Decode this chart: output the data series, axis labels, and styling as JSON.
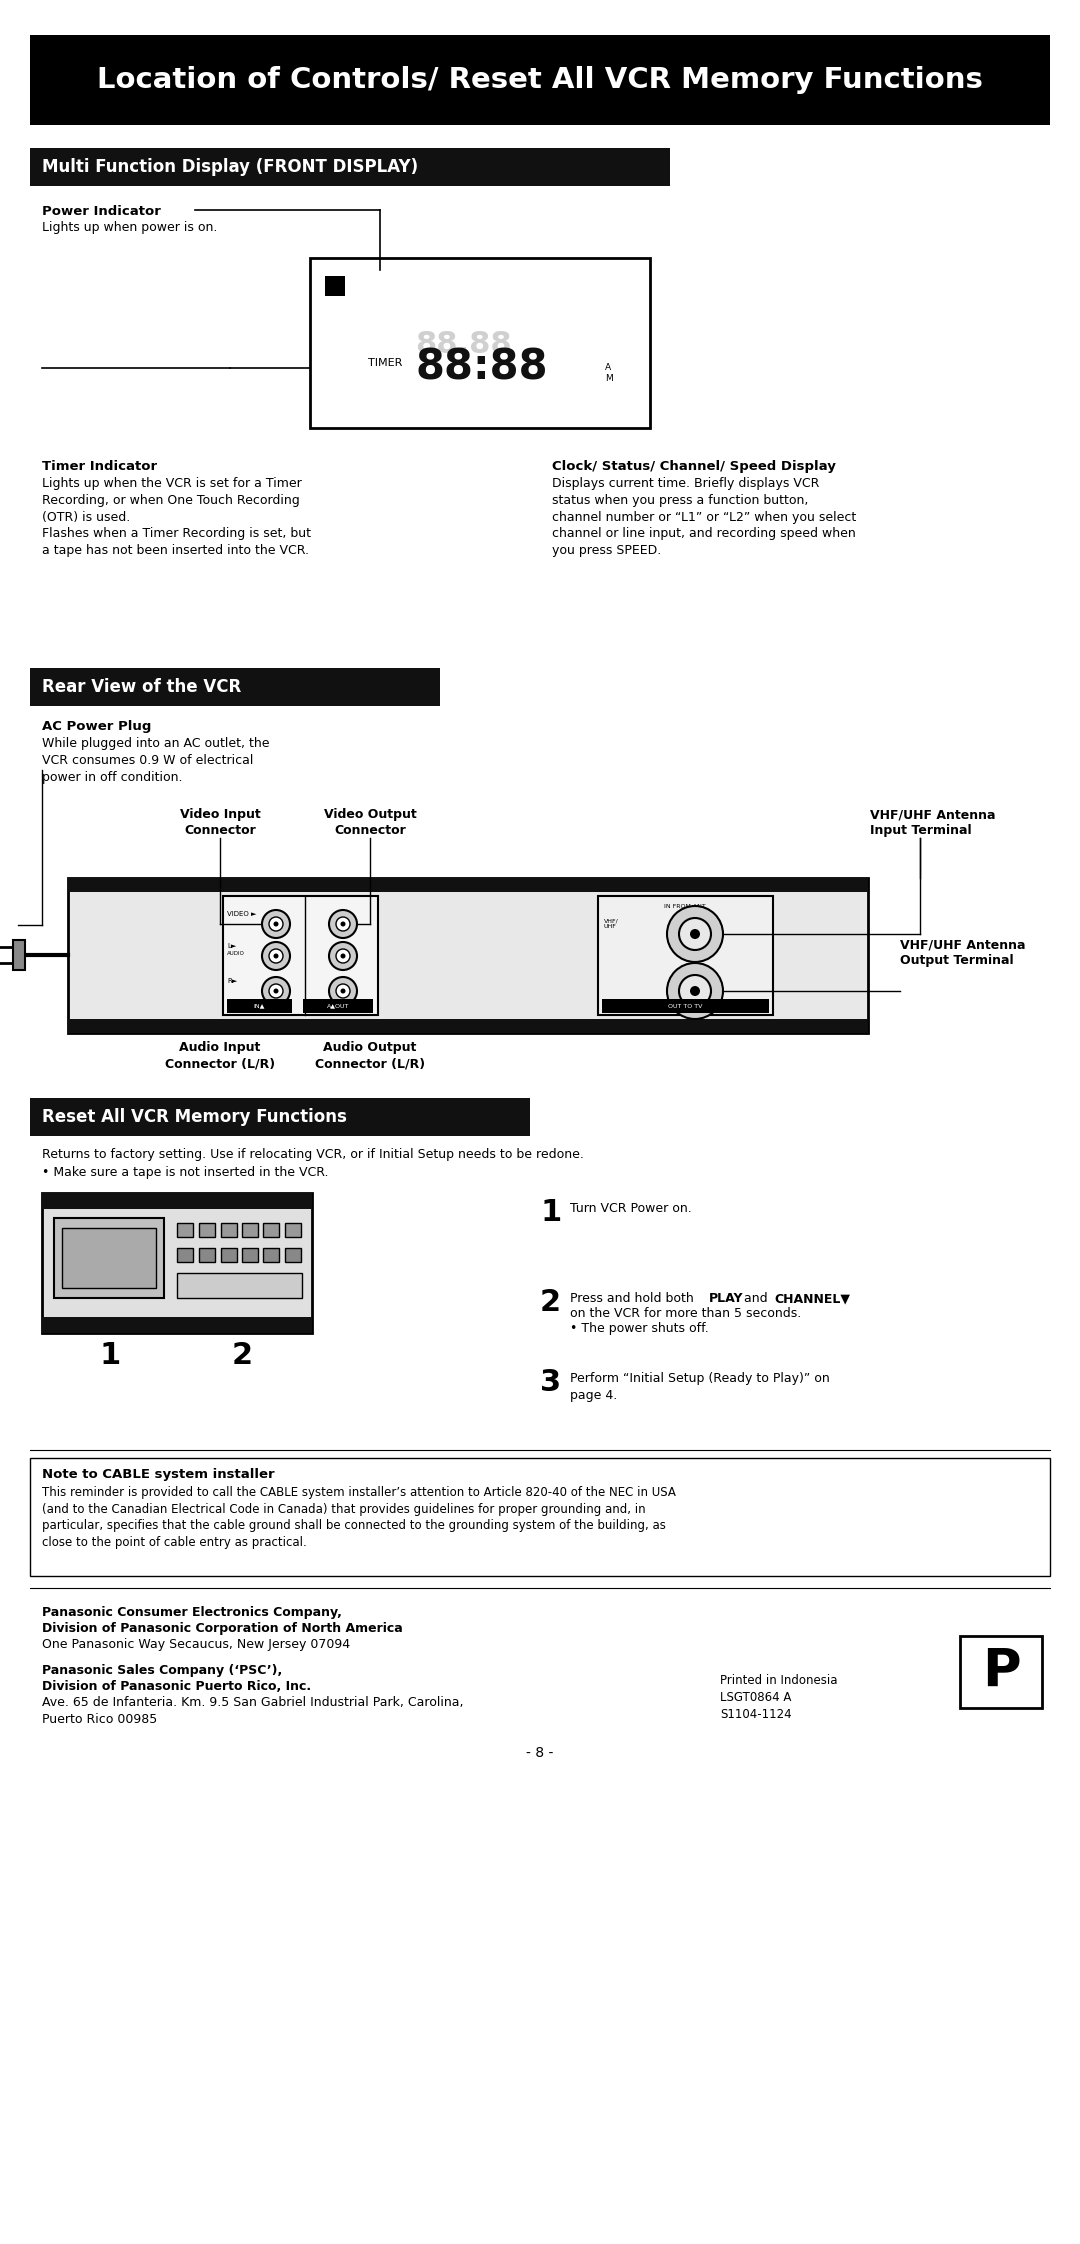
{
  "title": "Location of Controls/ Reset All VCR Memory Functions",
  "section1": "Multi Function Display (FRONT DISPLAY)",
  "section2": "Rear View of the VCR",
  "section3": "Reset All VCR Memory Functions",
  "bg_color": "#ffffff",
  "power_indicator_bold": "Power Indicator",
  "power_indicator_text": "Lights up when power is on.",
  "timer_indicator_bold": "Timer Indicator",
  "timer_indicator_text": "Lights up when the VCR is set for a Timer\nRecording, or when One Touch Recording\n(OTR) is used.\nFlashes when a Timer Recording is set, but\na tape has not been inserted into the VCR.",
  "clock_bold": "Clock/ Status/ Channel/ Speed Display",
  "clock_text": "Displays current time. Briefly displays VCR\nstatus when you press a function button,\nchannel number or “L1” or “L2” when you select\nchannel or line input, and recording speed when\nyou press SPEED.",
  "ac_bold": "AC Power Plug",
  "ac_text": "While plugged into an AC outlet, the\nVCR consumes 0.9 W of electrical\npower in off condition.",
  "video_input": "Video Input\nConnector",
  "video_output": "Video Output\nConnector",
  "vhf_input": "VHF/UHF Antenna\nInput Terminal",
  "vhf_output": "VHF/UHF Antenna\nOutput Terminal",
  "audio_input": "Audio Input\nConnector (L/R)",
  "audio_output": "Audio Output\nConnector (L/R)",
  "reset_intro": "Returns to factory setting. Use if relocating VCR, or if Initial Setup needs to be redone.",
  "reset_bullet": "• Make sure a tape is not inserted in the VCR.",
  "step1": "Turn VCR Power on.",
  "step3": "Perform “Initial Setup (Ready to Play)” on\npage 4.",
  "note_bold": "Note to CABLE system installer",
  "note_text": "This reminder is provided to call the CABLE system installer’s attention to Article 820-40 of the NEC in USA\n(and to the Canadian Electrical Code in Canada) that provides guidelines for proper grounding and, in\nparticular, specifies that the cable ground shall be connected to the grounding system of the building, as\nclose to the point of cable entry as practical.",
  "panasonic1_bold": "Panasonic Consumer Electronics Company,",
  "panasonic1b_bold": "Division of Panasonic Corporation of North America",
  "panasonic1_text": "One Panasonic Way Secaucus, New Jersey 07094",
  "panasonic2_bold": "Panasonic Sales Company (‘PSC’),",
  "panasonic2b_bold": "Division of Panasonic Puerto Rico, Inc.",
  "panasonic2_text": "Ave. 65 de Infanteria. Km. 9.5 San Gabriel Industrial Park, Carolina,\nPuerto Rico 00985",
  "printed": "Printed in Indonesia\nLSGT0864 A\nS1104-1124",
  "page": "- 8 -"
}
